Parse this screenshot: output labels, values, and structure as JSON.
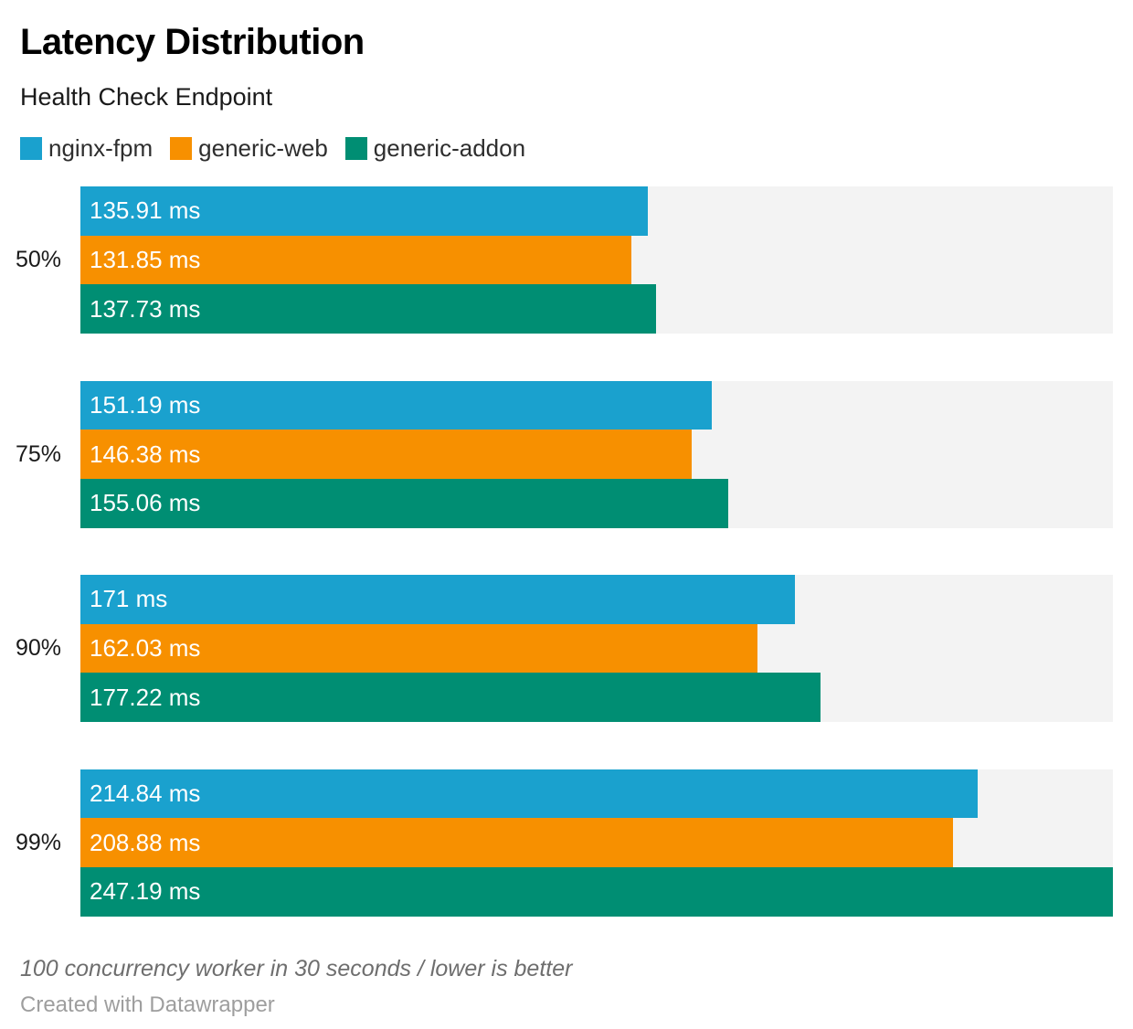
{
  "header": {
    "title": "Latency Distribution",
    "subtitle": "Health Check Endpoint"
  },
  "legend": {
    "items": [
      {
        "label": "nginx-fpm",
        "color": "#1AA1CE"
      },
      {
        "label": "generic-web",
        "color": "#F79000"
      },
      {
        "label": "generic-addon",
        "color": "#008E73"
      }
    ]
  },
  "chart_data": {
    "type": "bar",
    "orientation": "horizontal",
    "title": "Latency Distribution",
    "subtitle": "Health Check Endpoint",
    "categories": [
      "50%",
      "75%",
      "90%",
      "99%"
    ],
    "series": [
      {
        "name": "nginx-fpm",
        "color": "#1AA1CE",
        "values": [
          135.91,
          151.19,
          171,
          214.84
        ],
        "value_labels": [
          "135.91 ms",
          "151.19 ms",
          "171 ms",
          "214.84 ms"
        ]
      },
      {
        "name": "generic-web",
        "color": "#F79000",
        "values": [
          131.85,
          146.38,
          162.03,
          208.88
        ],
        "value_labels": [
          "131.85 ms",
          "146.38 ms",
          "162.03 ms",
          "208.88 ms"
        ]
      },
      {
        "name": "generic-addon",
        "color": "#008E73",
        "values": [
          137.73,
          155.06,
          177.22,
          247.19
        ],
        "value_labels": [
          "137.73 ms",
          "155.06 ms",
          "177.22 ms",
          "247.19 ms"
        ]
      }
    ],
    "value_unit": "ms",
    "xlim": [
      0,
      247.19
    ],
    "track_color": "#F3F3F3",
    "grid": false,
    "legend_position": "top"
  },
  "footer": {
    "note": "100 concurrency worker in 30 seconds / lower is better",
    "attribution": "Created with Datawrapper"
  }
}
